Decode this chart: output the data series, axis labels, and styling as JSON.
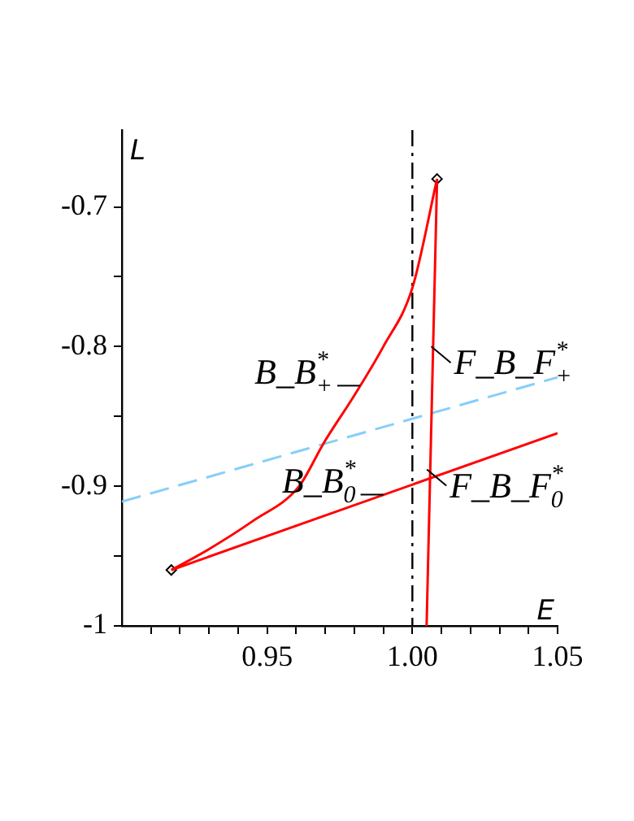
{
  "chart_data": {
    "type": "line",
    "xlabel": "E",
    "ylabel": "L",
    "xlim": [
      0.9,
      1.05
    ],
    "ylim": [
      -1,
      -0.645
    ],
    "xticks": [
      {
        "value": 0.91,
        "label": null
      },
      {
        "value": 0.92,
        "label": null
      },
      {
        "value": 0.93,
        "label": null
      },
      {
        "value": 0.94,
        "label": null
      },
      0.95,
      {
        "value": 0.96,
        "label": null
      },
      {
        "value": 0.97,
        "label": null
      },
      {
        "value": 0.98,
        "label": null
      },
      {
        "value": 0.99,
        "label": null
      },
      {
        "value": 1,
        "label": "1.00"
      },
      {
        "value": 1.01,
        "label": null
      },
      {
        "value": 1.02,
        "label": null
      },
      {
        "value": 1.03,
        "label": null
      },
      {
        "value": 1.04,
        "label": null
      },
      1.05
    ],
    "yticks": [
      {
        "value": -1,
        "label": "-1"
      },
      {
        "value": -0.95,
        "label": null
      },
      -0.9,
      {
        "value": -0.85,
        "label": null
      },
      -0.8,
      {
        "value": -0.75,
        "label": null
      },
      -0.7
    ],
    "grid": false,
    "legend": false,
    "series": [
      {
        "color": "#ff0000",
        "x": [
          0.917,
          0.93,
          0.945,
          0.961,
          0.9695,
          0.98,
          0.99,
          1.0,
          1.0085
        ],
        "values": [
          -0.96,
          -0.945,
          -0.925,
          -0.9,
          -0.869,
          -0.835,
          -0.8,
          -0.758,
          -0.68
        ]
      },
      {
        "color": "#ff0000",
        "x": [
          0.917,
          1.05
        ],
        "values": [
          -0.96,
          -0.862
        ]
      },
      {
        "color": "#ff0000",
        "x": [
          1.0085,
          1.0049
        ],
        "values": [
          -0.68,
          -1
        ]
      },
      {
        "color": "#87cefa",
        "line_style": "dashed",
        "x": [
          0.9,
          1.05
        ],
        "values": [
          -0.911,
          -0.822
        ]
      },
      {
        "type": "scatter",
        "color": "#000000",
        "marker": "diamond",
        "x": [
          0.917,
          1.0085
        ],
        "values": [
          -0.96,
          -0.68
        ]
      }
    ],
    "ref_lines": [
      {
        "axis": "x",
        "value": 1,
        "color": "#000000",
        "line_style": "dashdot"
      }
    ],
    "annotations": [
      {
        "text": "F_B_F$^{*}$$_{+}$",
        "x": 1.0065,
        "y": -0.8
      },
      {
        "text": "B_B$^{*}$$_{+}$",
        "x": 0.982,
        "y": -0.828
      },
      {
        "text": "B_B$^{*}$$_{0}$",
        "x": 0.99,
        "y": -0.906
      },
      {
        "text": "F_B_F$^{*}$$_{0}$",
        "x": 1.005,
        "y": -0.888
      }
    ]
  }
}
